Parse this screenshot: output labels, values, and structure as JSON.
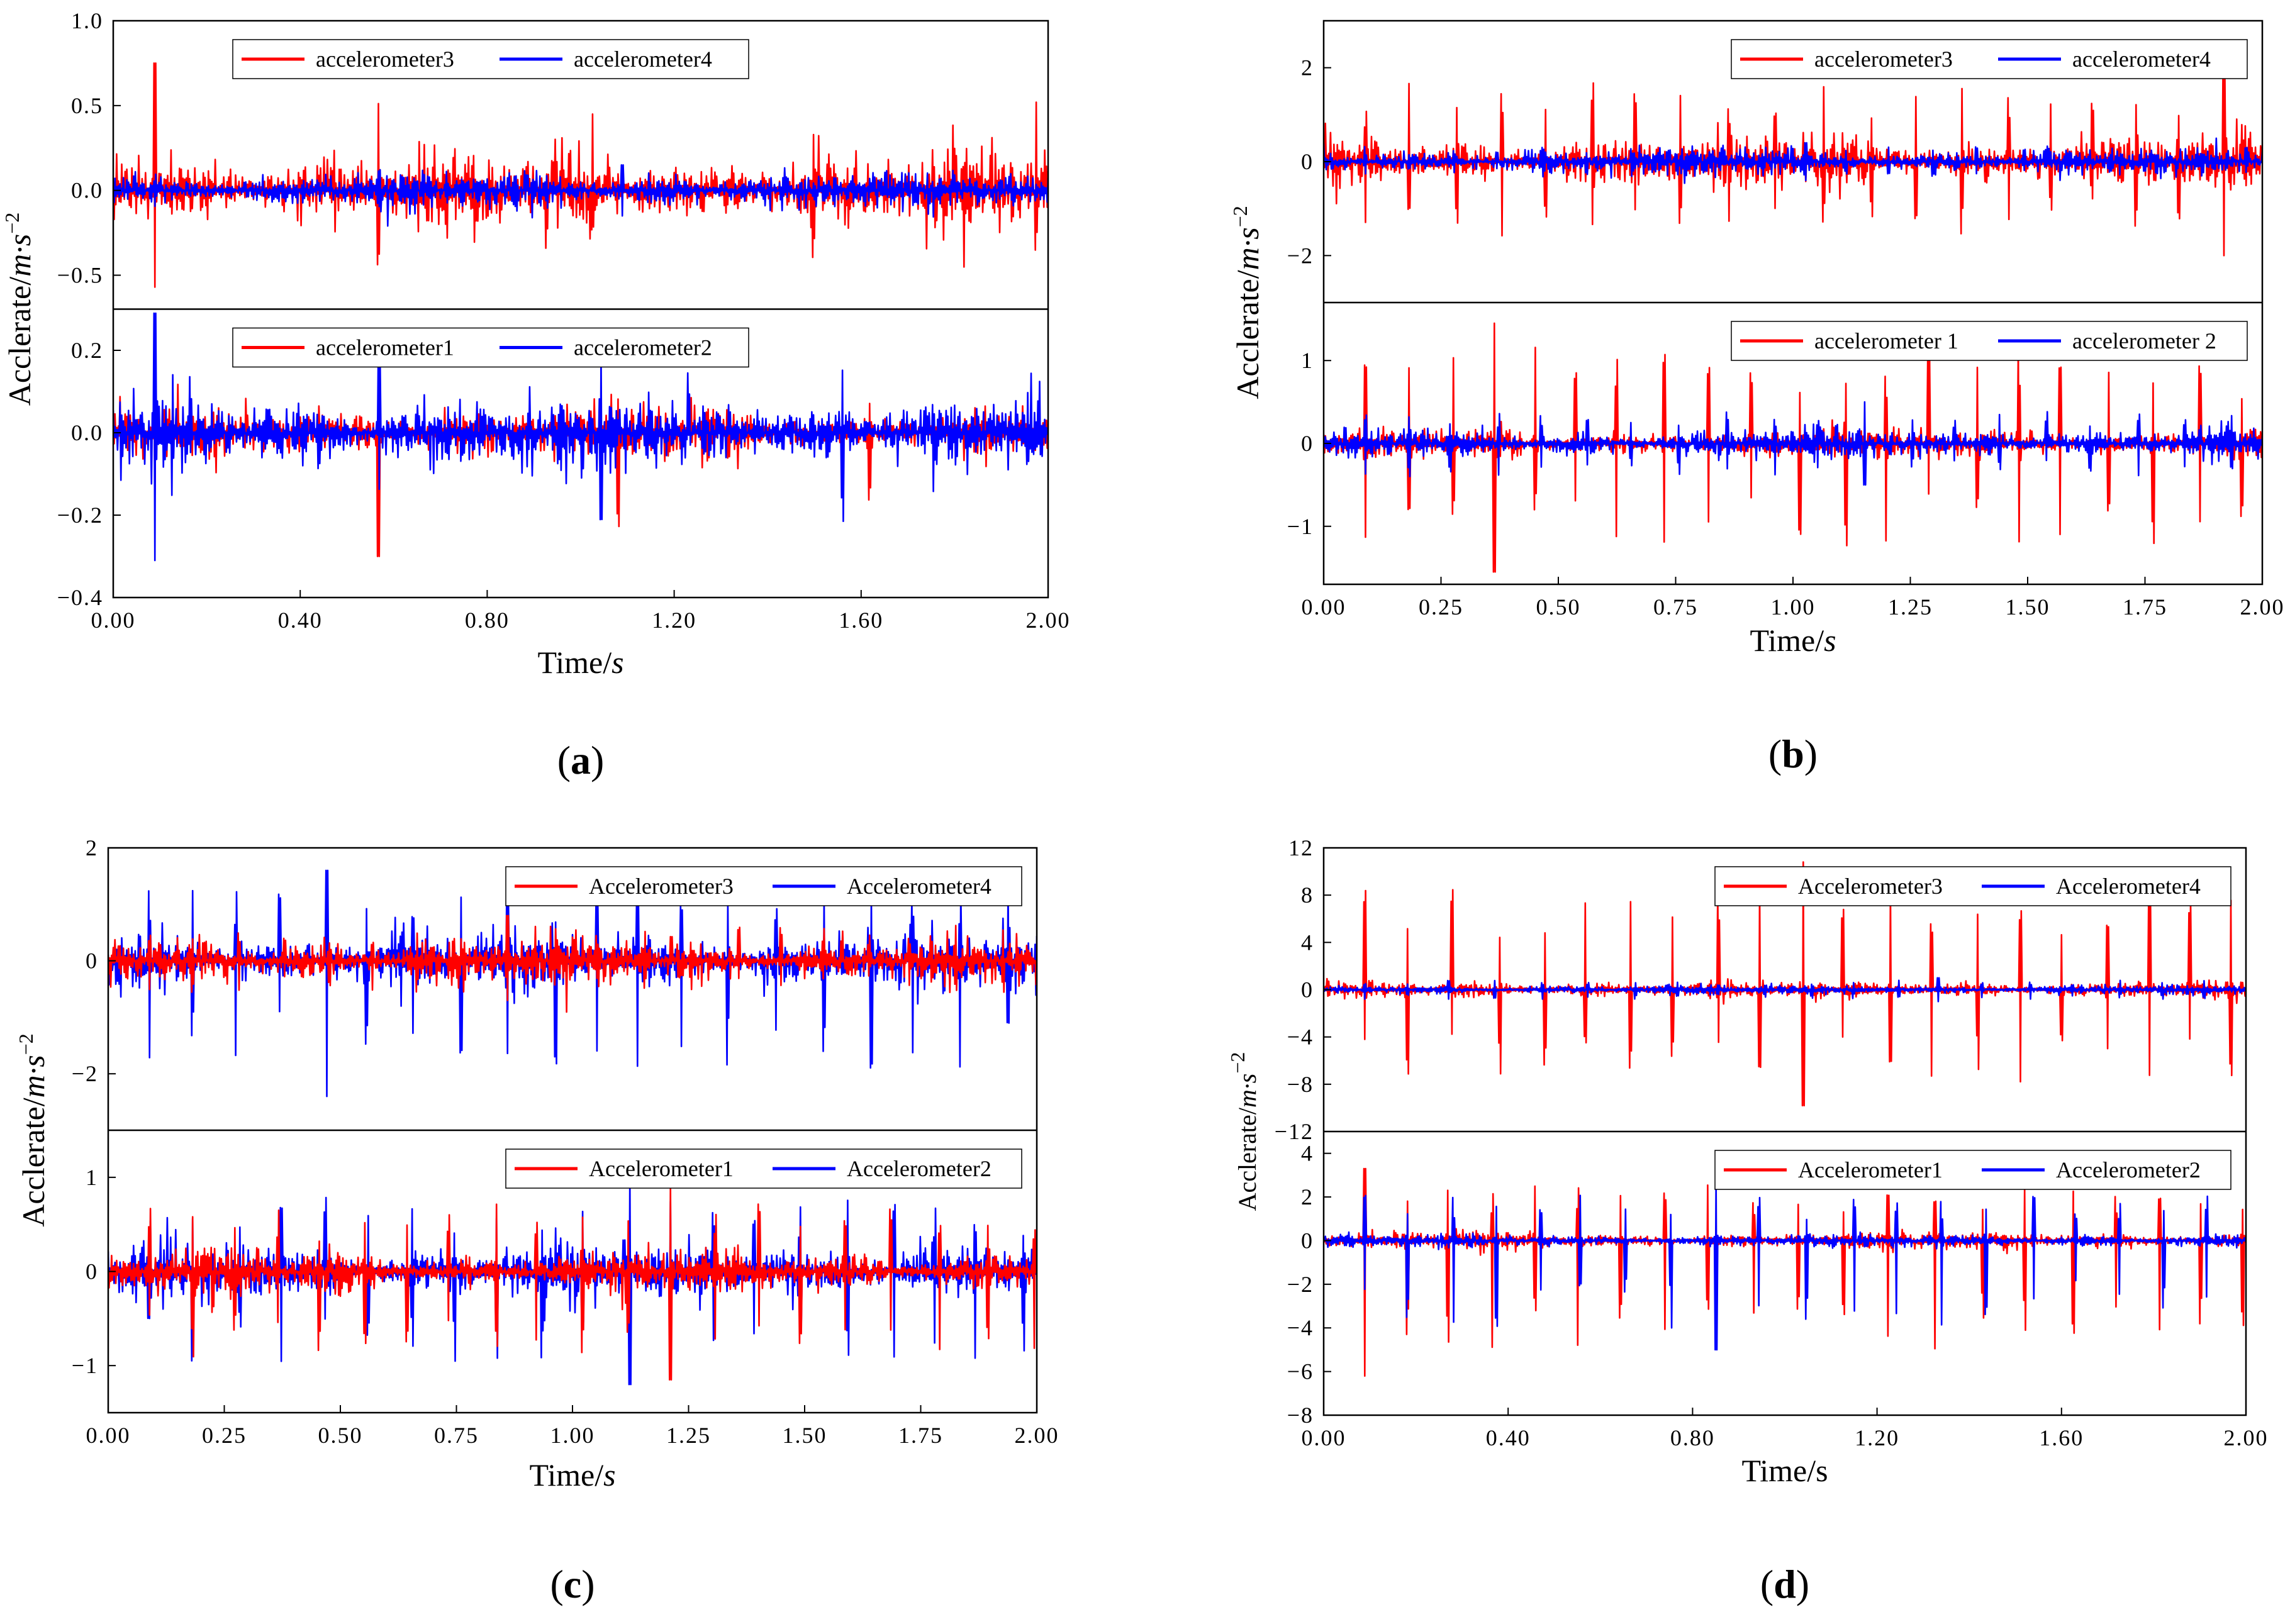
{
  "chart_data": [
    {
      "type": "line",
      "caption": "a",
      "xlabel_main": "Time/",
      "xlabel_italic": "s",
      "ylabel": "Acclerate/",
      "ylabel_unit": "m·s",
      "ylabel_exp": "−2",
      "xlim": [
        0,
        2.0
      ],
      "xticks": [
        "0.00",
        "0.40",
        "0.80",
        "1.20",
        "1.60",
        "2.00"
      ],
      "xtick_values": [
        0,
        0.4,
        0.8,
        1.2,
        1.6,
        2.0
      ],
      "panels": [
        {
          "ylim": [
            -0.7,
            1.0
          ],
          "yticks": [
            "−0.5",
            "0.0",
            "0.5",
            "1.0"
          ],
          "ytick_values": [
            -0.5,
            0,
            0.5,
            1.0
          ],
          "legend_position": "top-center",
          "series": [
            {
              "name": "accelerometer3",
              "color": "#ff0000",
              "amplitude": 0.25,
              "peak_max": 0.75,
              "peak_min": -0.57
            },
            {
              "name": "accelerometer4",
              "color": "#0000ff",
              "amplitude": 0.12,
              "peak_max": 0.15,
              "peak_min": -0.15
            }
          ]
        },
        {
          "ylim": [
            -0.4,
            0.3
          ],
          "yticks": [
            "−0.4",
            "−0.2",
            "0.0",
            "0.2"
          ],
          "ytick_values": [
            -0.4,
            -0.2,
            0,
            0.2
          ],
          "legend_position": "top-center",
          "series": [
            {
              "name": "accelerometer1",
              "color": "#ff0000",
              "amplitude": 0.07,
              "peak_max": 0.15,
              "peak_min": -0.3
            },
            {
              "name": "accelerometer2",
              "color": "#0000ff",
              "amplitude": 0.1,
              "peak_max": 0.29,
              "peak_min": -0.31
            }
          ]
        }
      ]
    },
    {
      "type": "line",
      "caption": "b",
      "xlabel_main": "Time/",
      "xlabel_italic": "s",
      "ylabel": "Acclerate/",
      "ylabel_unit": "m·s",
      "ylabel_exp": "−2",
      "xlim": [
        0,
        2.0
      ],
      "xticks": [
        "0.00",
        "0.25",
        "0.50",
        "0.75",
        "1.00",
        "1.25",
        "1.50",
        "1.75",
        "2.00"
      ],
      "xtick_values": [
        0,
        0.25,
        0.5,
        0.75,
        1.0,
        1.25,
        1.5,
        1.75,
        2.0
      ],
      "panels": [
        {
          "ylim": [
            -3.0,
            3.0
          ],
          "yticks": [
            "−2",
            "0",
            "2"
          ],
          "ytick_values": [
            -2,
            0,
            2
          ],
          "legend_position": "top-right",
          "series": [
            {
              "name": "accelerometer3",
              "color": "#ff0000",
              "amplitude": 0.6,
              "peak_max": 2.1,
              "peak_min": -2.0
            },
            {
              "name": "accelerometer4",
              "color": "#0000ff",
              "amplitude": 0.3,
              "peak_max": 0.4,
              "peak_min": -0.4
            }
          ]
        },
        {
          "ylim": [
            -1.7,
            1.7
          ],
          "yticks": [
            "−1",
            "0",
            "1"
          ],
          "ytick_values": [
            -1,
            0,
            1
          ],
          "legend_position": "top-right",
          "series": [
            {
              "name": "accelerometer 1",
              "color": "#ff0000",
              "amplitude": 0.2,
              "peak_max": 1.45,
              "peak_min": -1.55
            },
            {
              "name": "accelerometer 2",
              "color": "#0000ff",
              "amplitude": 0.2,
              "peak_max": 0.5,
              "peak_min": -0.5
            }
          ]
        }
      ]
    },
    {
      "type": "line",
      "caption": "c",
      "xlabel_main": "Time/",
      "xlabel_italic": "s",
      "ylabel": "Acclerate/",
      "ylabel_unit": "m·s",
      "ylabel_exp": "−2",
      "xlim": [
        0,
        2.0
      ],
      "xticks": [
        "0.00",
        "0.25",
        "0.50",
        "0.75",
        "1.00",
        "1.25",
        "1.50",
        "1.75",
        "2.00"
      ],
      "xtick_values": [
        0,
        0.25,
        0.5,
        0.75,
        1.0,
        1.25,
        1.5,
        1.75,
        2.0
      ],
      "panels": [
        {
          "ylim": [
            -3.0,
            2.0
          ],
          "yticks": [
            "−2",
            "0",
            "2"
          ],
          "ytick_values": [
            -2,
            0,
            2
          ],
          "legend_position": "top-right",
          "series": [
            {
              "name": "Accelerometer3",
              "color": "#ff0000",
              "amplitude": 0.45,
              "peak_max": 0.8,
              "peak_min": -0.7
            },
            {
              "name": "Accelerometer4",
              "color": "#0000ff",
              "amplitude": 0.6,
              "peak_max": 1.6,
              "peak_min": -2.4
            }
          ]
        },
        {
          "ylim": [
            -1.5,
            1.5
          ],
          "yticks": [
            "−1",
            "0",
            "1"
          ],
          "ytick_values": [
            -1,
            0,
            1
          ],
          "legend_position": "top-right",
          "series": [
            {
              "name": "Accelerometer1",
              "color": "#ff0000",
              "amplitude": 0.25,
              "peak_max": 0.9,
              "peak_min": -1.15
            },
            {
              "name": "Accelerometer2",
              "color": "#0000ff",
              "amplitude": 0.35,
              "peak_max": 1.0,
              "peak_min": -1.2
            }
          ]
        }
      ]
    },
    {
      "type": "line",
      "caption": "d",
      "xlabel_main": "Time/s",
      "xlabel_italic": "",
      "ylabel": "Acclerate/",
      "ylabel_unit": "m·s",
      "ylabel_exp": "−2",
      "xlim": [
        0,
        2.0
      ],
      "xticks": [
        "0.00",
        "0.40",
        "0.80",
        "1.20",
        "1.60",
        "2.00"
      ],
      "xtick_values": [
        0,
        0.4,
        0.8,
        1.2,
        1.6,
        2.0
      ],
      "panels": [
        {
          "ylim": [
            -12,
            12
          ],
          "yticks": [
            "−12",
            "−8",
            "−4",
            "0",
            "4",
            "8",
            "12"
          ],
          "ytick_values": [
            -12,
            -8,
            -4,
            0,
            4,
            8,
            12
          ],
          "legend_position": "top-right",
          "series": [
            {
              "name": "Accelerometer3",
              "color": "#ff0000",
              "amplitude": 0.8,
              "peak_max": 10.8,
              "peak_min": -9.8
            },
            {
              "name": "Accelerometer4",
              "color": "#0000ff",
              "amplitude": 0.4,
              "peak_max": 1.0,
              "peak_min": -1.0
            }
          ]
        },
        {
          "ylim": [
            -8,
            5
          ],
          "yticks": [
            "−8",
            "−6",
            "−4",
            "−2",
            "0",
            "2",
            "4"
          ],
          "ytick_values": [
            -8,
            -6,
            -4,
            -2,
            0,
            2,
            4
          ],
          "legend_position": "top-right",
          "series": [
            {
              "name": "Accelerometer1",
              "color": "#ff0000",
              "amplitude": 0.4,
              "peak_max": 3.3,
              "peak_min": -6.2
            },
            {
              "name": "Accelerometer2",
              "color": "#0000ff",
              "amplitude": 0.3,
              "peak_max": 2.6,
              "peak_min": -5.0
            }
          ]
        }
      ]
    }
  ]
}
